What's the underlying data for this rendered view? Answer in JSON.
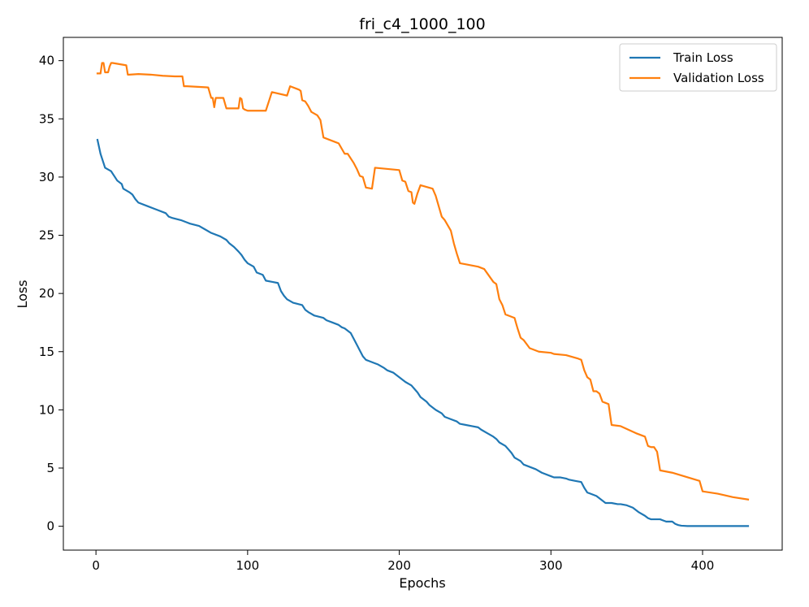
{
  "chart_data": {
    "type": "line",
    "title": "fri_c4_1000_100",
    "xlabel": "Epochs",
    "ylabel": "Loss",
    "xlim": [
      -21.5,
      452.5
    ],
    "ylim": [
      -2.05,
      42.0
    ],
    "xticks": [
      0,
      100,
      200,
      300,
      400
    ],
    "yticks": [
      0,
      5,
      10,
      15,
      20,
      25,
      30,
      35,
      40
    ],
    "grid": false,
    "legend_position": "top-right",
    "series": [
      {
        "name": "Train Loss",
        "color": "#1f77b4",
        "x": [
          1,
          3,
          5,
          6,
          10,
          12,
          14,
          17,
          18,
          22,
          24,
          26,
          28,
          34,
          40,
          46,
          48,
          50,
          56,
          60,
          62,
          68,
          72,
          76,
          82,
          86,
          88,
          91,
          94,
          96,
          98,
          100,
          104,
          106,
          110,
          112,
          116,
          120,
          122,
          124,
          126,
          130,
          136,
          138,
          140,
          144,
          150,
          152,
          156,
          160,
          162,
          164,
          168,
          170,
          172,
          174,
          176,
          178,
          180,
          184,
          186,
          190,
          192,
          196,
          200,
          204,
          208,
          212,
          214,
          216,
          218,
          220,
          224,
          228,
          230,
          234,
          238,
          240,
          244,
          248,
          252,
          254,
          258,
          262,
          264,
          266,
          270,
          272,
          274,
          276,
          280,
          282,
          286,
          290,
          294,
          300,
          302,
          306,
          310,
          312,
          316,
          320,
          322,
          324,
          326,
          330,
          332,
          334,
          336,
          340,
          344,
          346,
          350,
          354,
          356,
          358,
          362,
          364,
          366,
          368,
          372,
          374,
          376,
          380,
          382,
          384,
          386,
          390,
          400,
          410,
          420,
          430
        ],
        "y": [
          33.2,
          32.0,
          31.2,
          30.8,
          30.5,
          30.1,
          29.7,
          29.4,
          29.0,
          28.7,
          28.5,
          28.1,
          27.8,
          27.5,
          27.2,
          26.9,
          26.6,
          26.5,
          26.3,
          26.1,
          26.0,
          25.8,
          25.5,
          25.2,
          24.9,
          24.6,
          24.3,
          24.0,
          23.6,
          23.3,
          22.9,
          22.6,
          22.3,
          21.8,
          21.6,
          21.1,
          21.0,
          20.9,
          20.2,
          19.8,
          19.5,
          19.2,
          19.0,
          18.6,
          18.4,
          18.1,
          17.9,
          17.7,
          17.5,
          17.3,
          17.1,
          17.0,
          16.6,
          16.1,
          15.6,
          15.1,
          14.6,
          14.3,
          14.2,
          14.0,
          13.9,
          13.6,
          13.4,
          13.2,
          12.8,
          12.4,
          12.1,
          11.5,
          11.1,
          10.9,
          10.7,
          10.4,
          10.0,
          9.7,
          9.4,
          9.2,
          9.0,
          8.8,
          8.7,
          8.6,
          8.5,
          8.3,
          8.0,
          7.7,
          7.5,
          7.2,
          6.9,
          6.6,
          6.3,
          5.9,
          5.6,
          5.3,
          5.1,
          4.9,
          4.6,
          4.3,
          4.2,
          4.2,
          4.1,
          4.0,
          3.9,
          3.8,
          3.3,
          2.9,
          2.8,
          2.6,
          2.4,
          2.2,
          2.0,
          2.0,
          1.9,
          1.9,
          1.8,
          1.6,
          1.4,
          1.2,
          0.9,
          0.7,
          0.6,
          0.6,
          0.6,
          0.5,
          0.4,
          0.4,
          0.2,
          0.1,
          0.05,
          0.02,
          0.02,
          0.02,
          0.02,
          0.02
        ]
      },
      {
        "name": "Validation Loss",
        "color": "#ff7f0e",
        "x": [
          1,
          3,
          4,
          5,
          6,
          8,
          9,
          10,
          11,
          20,
          21,
          22,
          28,
          36,
          44,
          52,
          56,
          57,
          58,
          60,
          74,
          76,
          77,
          78,
          79,
          80,
          82,
          84,
          86,
          88,
          90,
          92,
          94,
          95,
          96,
          97,
          98,
          100,
          104,
          108,
          110,
          112,
          114,
          116,
          126,
          128,
          134,
          135,
          136,
          138,
          140,
          142,
          146,
          148,
          150,
          158,
          160,
          164,
          166,
          170,
          172,
          174,
          176,
          178,
          182,
          184,
          200,
          202,
          204,
          206,
          208,
          209,
          210,
          212,
          214,
          222,
          224,
          226,
          228,
          230,
          234,
          236,
          238,
          240,
          244,
          252,
          256,
          262,
          264,
          266,
          268,
          270,
          272,
          276,
          278,
          280,
          282,
          286,
          288,
          292,
          300,
          302,
          310,
          318,
          320,
          322,
          324,
          326,
          328,
          330,
          332,
          334,
          336,
          338,
          340,
          346,
          356,
          362,
          364,
          366,
          368,
          370,
          372,
          380,
          398,
          400,
          410,
          420,
          430
        ],
        "y": [
          38.9,
          38.9,
          39.8,
          39.8,
          39.0,
          39.0,
          39.5,
          39.8,
          39.8,
          39.6,
          38.8,
          38.8,
          38.85,
          38.8,
          38.7,
          38.65,
          38.65,
          38.65,
          37.8,
          37.8,
          37.7,
          36.8,
          36.8,
          36.0,
          36.8,
          36.8,
          36.8,
          36.8,
          35.9,
          35.9,
          35.9,
          35.9,
          35.9,
          36.8,
          36.7,
          35.9,
          35.8,
          35.7,
          35.7,
          35.7,
          35.7,
          35.7,
          36.5,
          37.3,
          37.0,
          37.8,
          37.5,
          37.4,
          36.6,
          36.5,
          36.1,
          35.6,
          35.3,
          34.9,
          33.4,
          33.0,
          32.9,
          32.0,
          32.0,
          31.2,
          30.7,
          30.1,
          30.0,
          29.1,
          29.0,
          30.8,
          30.6,
          29.7,
          29.6,
          28.8,
          28.7,
          27.8,
          27.7,
          28.6,
          29.3,
          29.0,
          28.4,
          27.5,
          26.6,
          26.3,
          25.4,
          24.3,
          23.4,
          22.6,
          22.5,
          22.3,
          22.1,
          21.0,
          20.8,
          19.5,
          19.0,
          18.2,
          18.1,
          17.9,
          17.0,
          16.2,
          16.0,
          15.3,
          15.2,
          15.0,
          14.9,
          14.8,
          14.7,
          14.4,
          14.3,
          13.4,
          12.8,
          12.6,
          11.6,
          11.6,
          11.4,
          10.7,
          10.6,
          10.5,
          8.7,
          8.6,
          8.0,
          7.7,
          6.9,
          6.8,
          6.8,
          6.4,
          4.8,
          4.6,
          3.9,
          3.0,
          2.8,
          2.5,
          2.3
        ]
      }
    ]
  }
}
